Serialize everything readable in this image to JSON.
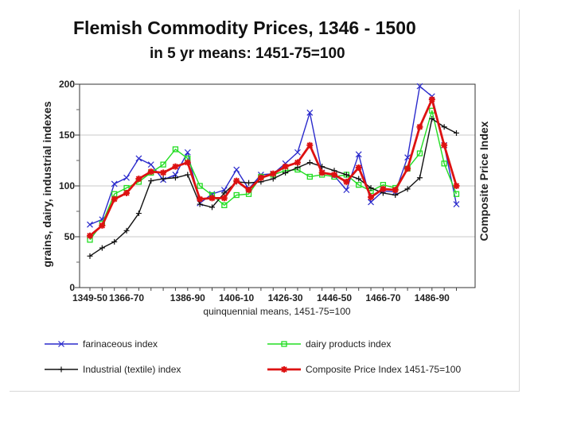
{
  "chart_data": {
    "type": "line",
    "title": "Flemish Commodity Prices, 1346 - 1500",
    "subtitle": "in 5 yr means: 1451-75=100",
    "xlabel": "quinquennial means, 1451-75=100",
    "ylabel": "grains, dairy, industrial indexes",
    "y2label": "Composite Price Index",
    "ylim": [
      0,
      200
    ],
    "yticks": [
      0,
      50,
      100,
      150,
      200
    ],
    "xtick_labels": [
      "1349-50",
      "1366-70",
      "1386-90",
      "1406-10",
      "1426-30",
      "1446-50",
      "1466-70",
      "1486-90"
    ],
    "xtick_indices": [
      0,
      3,
      8,
      12,
      16,
      20,
      24,
      28
    ],
    "n_points": 31,
    "series": [
      {
        "name": "farinaceous index",
        "color": "#2a2acc",
        "marker": "x",
        "values": [
          62,
          67,
          102,
          108,
          127,
          121,
          106,
          111,
          133,
          83,
          92,
          96,
          116,
          97,
          111,
          112,
          122,
          133,
          172,
          113,
          110,
          96,
          131,
          84,
          95,
          94,
          128,
          198,
          188,
          140,
          82
        ]
      },
      {
        "name": "dairy products index",
        "color": "#22dd22",
        "marker": "square",
        "values": [
          47,
          63,
          92,
          98,
          104,
          113,
          121,
          136,
          127,
          100,
          91,
          81,
          91,
          92,
          109,
          111,
          115,
          116,
          109,
          111,
          109,
          111,
          101,
          95,
          101,
          98,
          117,
          132,
          174,
          122,
          92
        ]
      },
      {
        "name": "Industrial (textile) index",
        "color": "#111111",
        "marker": "plus",
        "values": [
          31,
          39,
          45,
          56,
          73,
          105,
          107,
          108,
          111,
          82,
          79,
          93,
          104,
          103,
          104,
          107,
          113,
          118,
          123,
          119,
          115,
          111,
          107,
          98,
          93,
          91,
          97,
          108,
          166,
          158,
          152
        ]
      },
      {
        "name": "Composite Price Index 1451-75=100",
        "color": "#dd1111",
        "marker": "star",
        "values": [
          51,
          61,
          87,
          93,
          107,
          114,
          113,
          119,
          123,
          87,
          88,
          88,
          105,
          96,
          108,
          112,
          119,
          123,
          140,
          113,
          111,
          104,
          118,
          89,
          97,
          96,
          117,
          158,
          185,
          140,
          100
        ]
      }
    ],
    "legend_position": "bottom"
  }
}
